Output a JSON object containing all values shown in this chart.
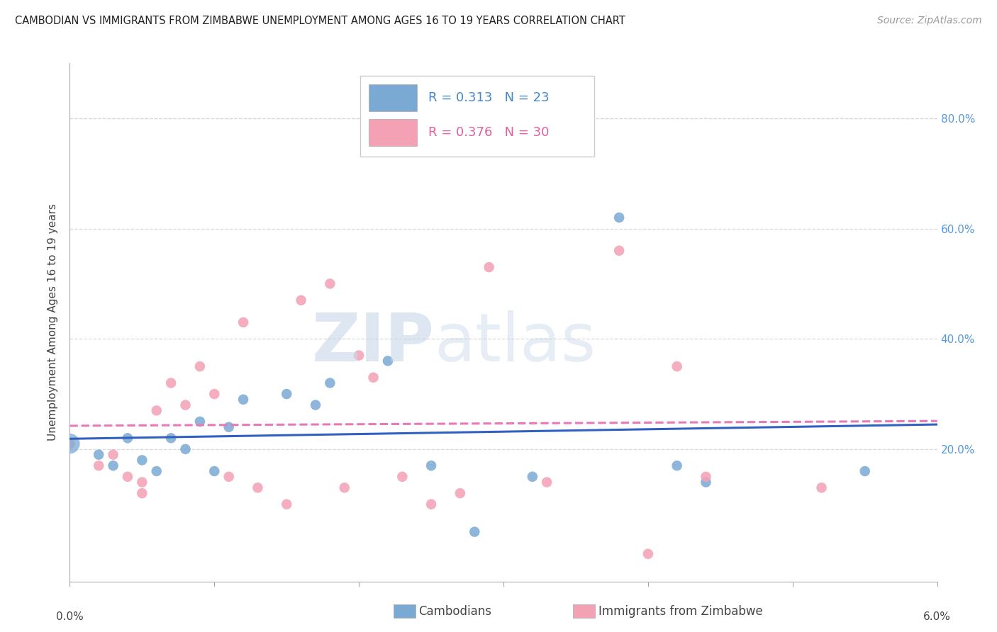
{
  "title": "CAMBODIAN VS IMMIGRANTS FROM ZIMBABWE UNEMPLOYMENT AMONG AGES 16 TO 19 YEARS CORRELATION CHART",
  "source": "Source: ZipAtlas.com",
  "ylabel": "Unemployment Among Ages 16 to 19 years",
  "y_tick_labels": [
    "20.0%",
    "40.0%",
    "60.0%",
    "80.0%"
  ],
  "y_tick_values": [
    0.2,
    0.4,
    0.6,
    0.8
  ],
  "legend_label1": "Cambodians",
  "legend_label2": "Immigrants from Zimbabwe",
  "r1": "0.313",
  "n1": "23",
  "r2": "0.376",
  "n2": "30",
  "color1": "#7aaad4",
  "color2": "#f4a0b5",
  "line_color1": "#3060c0",
  "line_color2": "#e878b8",
  "xlim": [
    0.0,
    0.06
  ],
  "ylim": [
    -0.04,
    0.9
  ],
  "cambodian_x": [
    0.0,
    0.002,
    0.003,
    0.004,
    0.005,
    0.006,
    0.007,
    0.008,
    0.009,
    0.01,
    0.011,
    0.012,
    0.015,
    0.017,
    0.018,
    0.022,
    0.025,
    0.028,
    0.032,
    0.038,
    0.042,
    0.044,
    0.055
  ],
  "cambodian_y": [
    0.21,
    0.19,
    0.17,
    0.22,
    0.18,
    0.16,
    0.22,
    0.2,
    0.25,
    0.16,
    0.24,
    0.29,
    0.3,
    0.28,
    0.32,
    0.36,
    0.17,
    0.05,
    0.15,
    0.62,
    0.17,
    0.14,
    0.16
  ],
  "cambodian_size": [
    400,
    100,
    100,
    100,
    100,
    100,
    100,
    100,
    100,
    100,
    100,
    100,
    100,
    100,
    100,
    100,
    100,
    100,
    100,
    100,
    100,
    100,
    100
  ],
  "zimbabwe_x": [
    0.0,
    0.002,
    0.003,
    0.004,
    0.005,
    0.005,
    0.006,
    0.007,
    0.008,
    0.009,
    0.01,
    0.011,
    0.012,
    0.013,
    0.015,
    0.016,
    0.018,
    0.019,
    0.02,
    0.021,
    0.023,
    0.025,
    0.027,
    0.029,
    0.033,
    0.038,
    0.04,
    0.042,
    0.044,
    0.052
  ],
  "zimbabwe_y": [
    0.21,
    0.17,
    0.19,
    0.15,
    0.12,
    0.14,
    0.27,
    0.32,
    0.28,
    0.35,
    0.3,
    0.15,
    0.43,
    0.13,
    0.1,
    0.47,
    0.5,
    0.13,
    0.37,
    0.33,
    0.15,
    0.1,
    0.12,
    0.53,
    0.14,
    0.56,
    0.01,
    0.35,
    0.15,
    0.13
  ],
  "x_ticks": [
    0.0,
    0.01,
    0.02,
    0.03,
    0.04,
    0.05,
    0.06
  ],
  "bg_color": "#ffffff",
  "grid_color": "#d8d8d8",
  "spine_color": "#aaaaaa",
  "title_fontsize": 10.5,
  "source_fontsize": 10,
  "ylabel_fontsize": 11,
  "tick_label_fontsize": 11,
  "legend_fontsize": 13
}
